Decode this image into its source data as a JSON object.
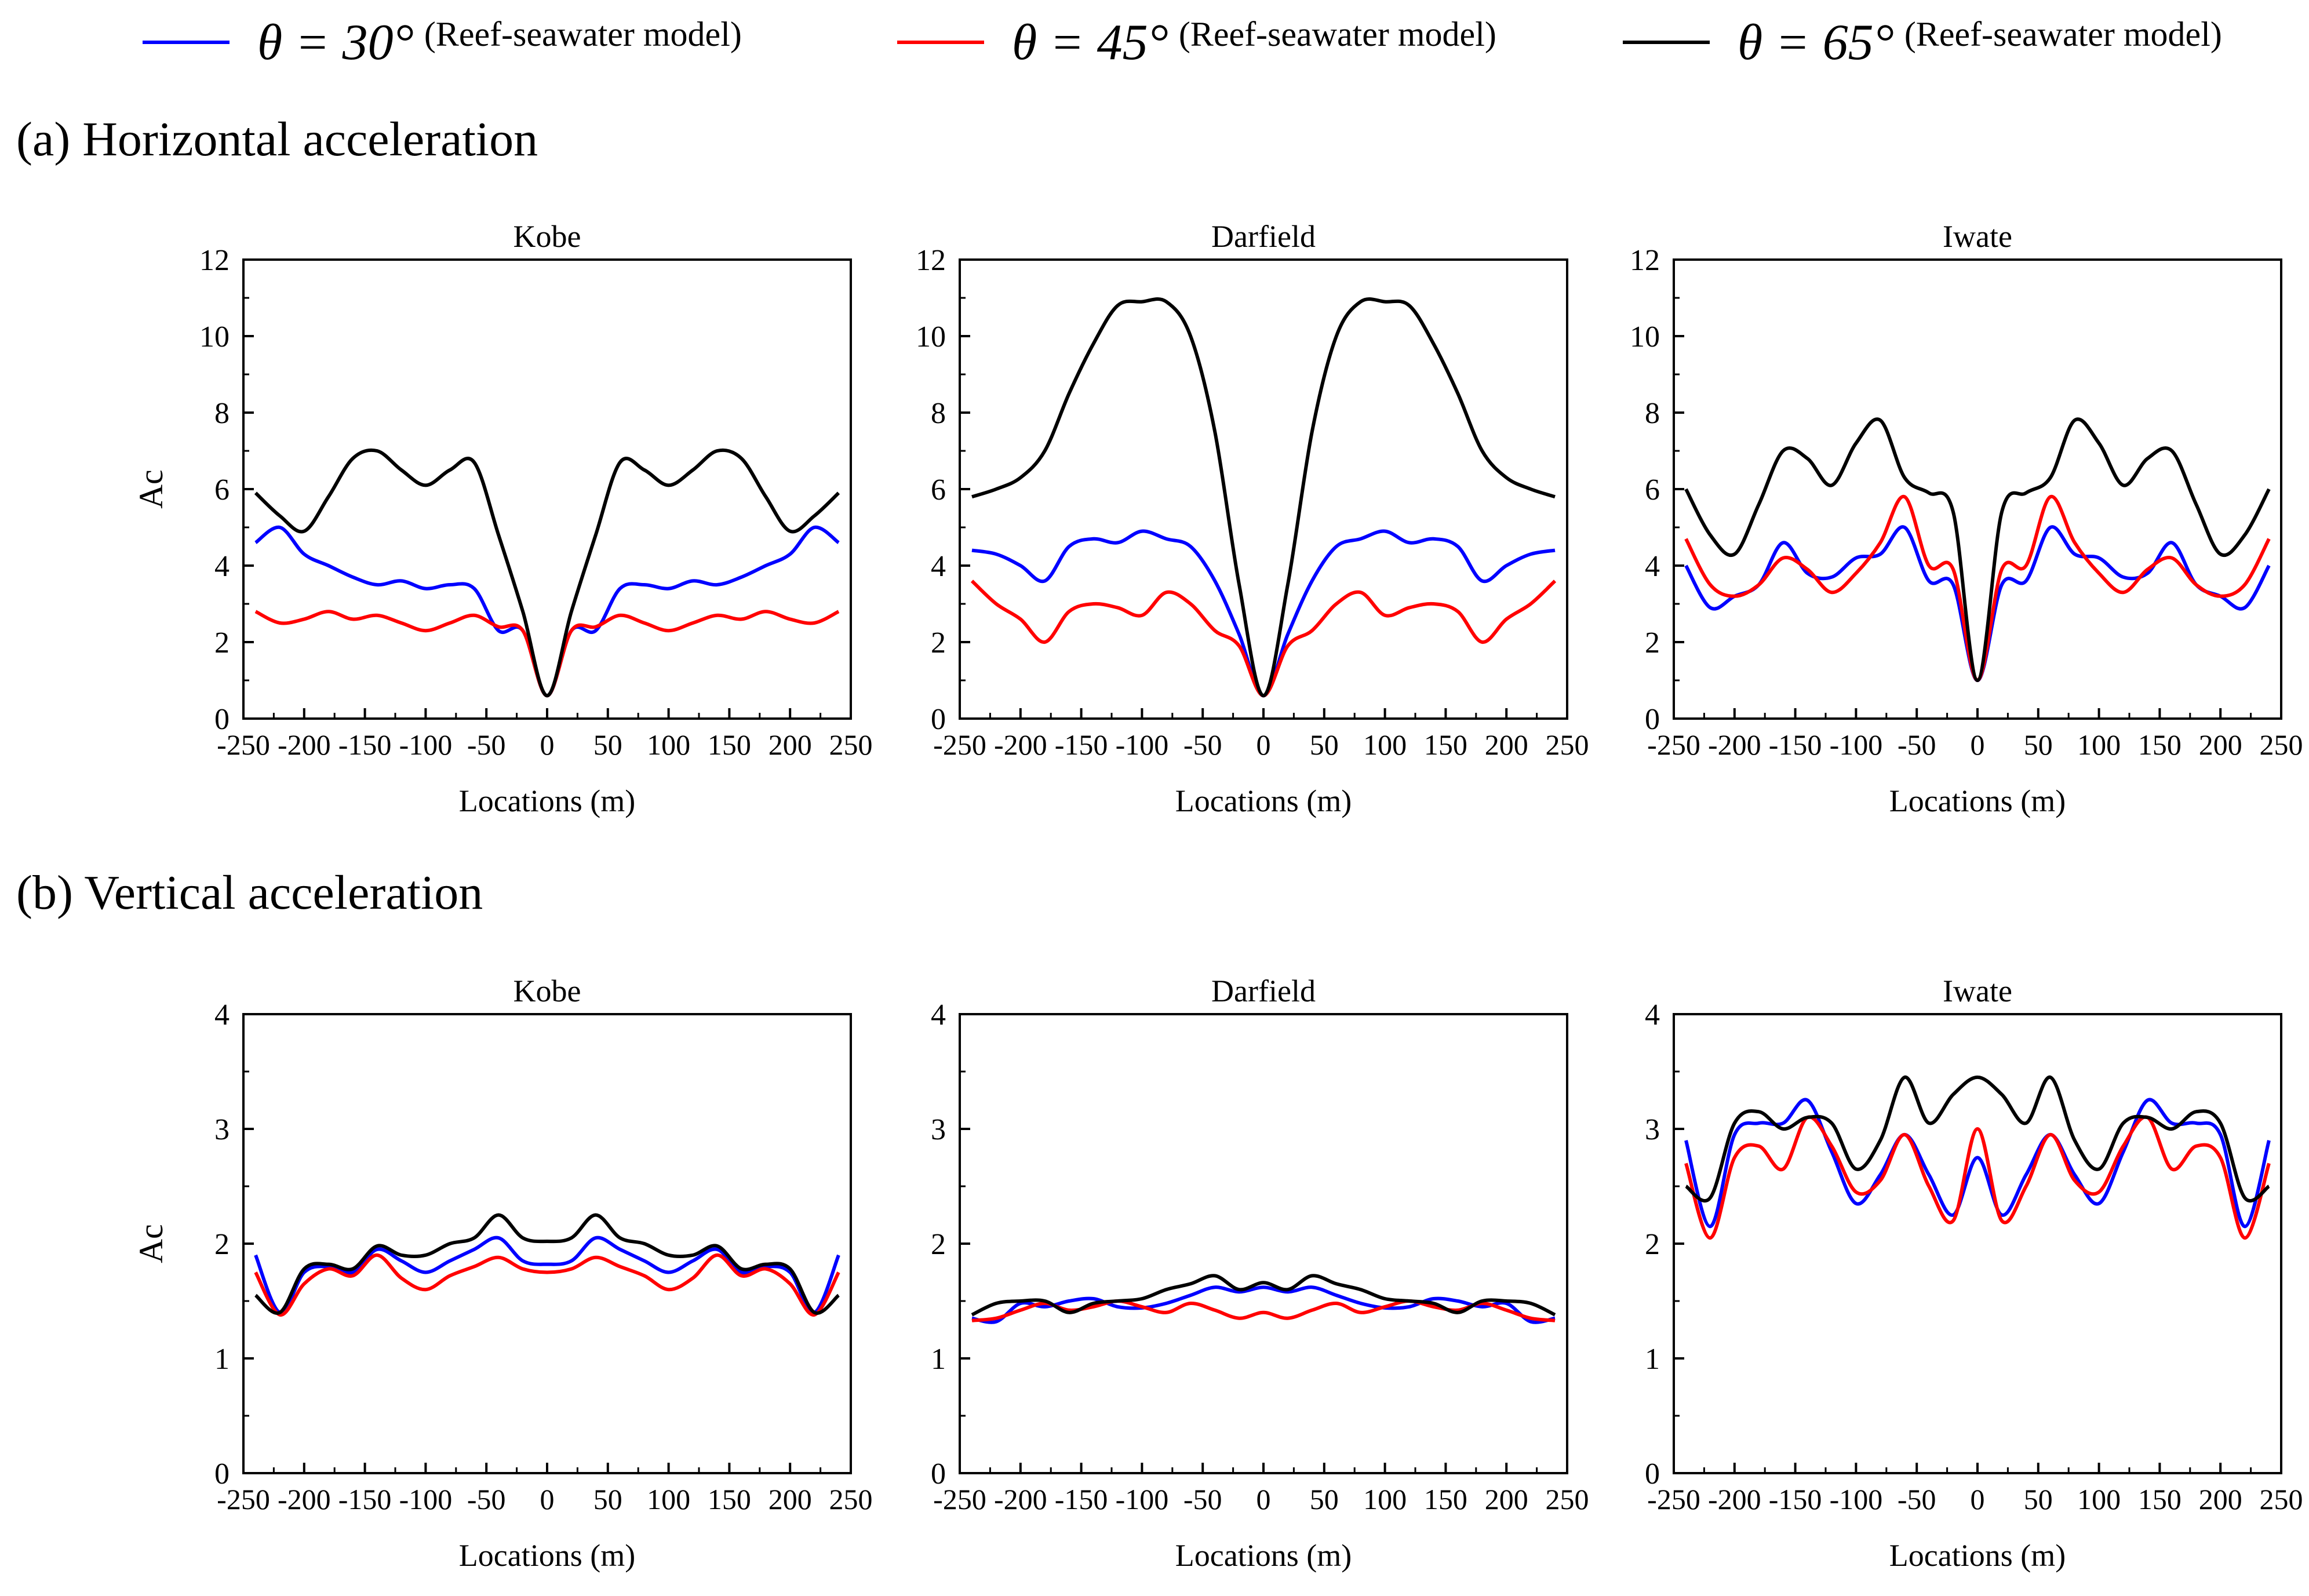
{
  "legend": [
    {
      "symbol": "θ = 30°",
      "note": "(Reef-seawater model)",
      "color": "#0000ff"
    },
    {
      "symbol": "θ = 45°",
      "note": "(Reef-seawater model)",
      "color": "#ff0000"
    },
    {
      "symbol": "θ = 65°",
      "note": "(Reef-seawater model)",
      "color": "#000000"
    }
  ],
  "sections": {
    "a": "(a) Horizontal acceleration",
    "b": "(b) Vertical acceleration"
  },
  "chart_data": [
    {
      "type": "line",
      "title": "Kobe",
      "xlabel": "Locations (m)",
      "ylabel": "Ac",
      "xlim": [
        -250,
        250
      ],
      "ylim": [
        0,
        12
      ],
      "xticks": [
        -250,
        -200,
        -150,
        -100,
        -50,
        0,
        50,
        100,
        150,
        200,
        250
      ],
      "yticks": [
        0,
        2,
        4,
        6,
        8,
        10,
        12
      ],
      "x": [
        -240,
        -220,
        -200,
        -180,
        -160,
        -140,
        -120,
        -100,
        -80,
        -60,
        -40,
        -20,
        0,
        20,
        40,
        60,
        80,
        100,
        120,
        140,
        160,
        180,
        200,
        220,
        240
      ],
      "series": [
        {
          "name": "θ = 30°",
          "color": "#0000ff",
          "values": [
            4.6,
            5.0,
            4.3,
            4.0,
            3.7,
            3.5,
            3.6,
            3.4,
            3.5,
            3.4,
            2.3,
            2.3,
            0.6,
            2.3,
            2.3,
            3.4,
            3.5,
            3.4,
            3.6,
            3.5,
            3.7,
            4.0,
            4.3,
            5.0,
            4.6
          ]
        },
        {
          "name": "θ = 45°",
          "color": "#ff0000",
          "values": [
            2.8,
            2.5,
            2.6,
            2.8,
            2.6,
            2.7,
            2.5,
            2.3,
            2.5,
            2.7,
            2.4,
            2.3,
            0.6,
            2.3,
            2.4,
            2.7,
            2.5,
            2.3,
            2.5,
            2.7,
            2.6,
            2.8,
            2.6,
            2.5,
            2.8
          ]
        },
        {
          "name": "θ = 65°",
          "color": "#000000",
          "values": [
            5.9,
            5.3,
            4.9,
            5.8,
            6.8,
            7.0,
            6.5,
            6.1,
            6.5,
            6.7,
            4.8,
            2.8,
            0.6,
            2.8,
            4.8,
            6.7,
            6.5,
            6.1,
            6.5,
            7.0,
            6.8,
            5.8,
            4.9,
            5.3,
            5.9
          ]
        }
      ]
    },
    {
      "type": "line",
      "title": "Darfield",
      "xlabel": "Locations (m)",
      "ylabel": "",
      "xlim": [
        -250,
        250
      ],
      "ylim": [
        0,
        12
      ],
      "xticks": [
        -250,
        -200,
        -150,
        -100,
        -50,
        0,
        50,
        100,
        150,
        200,
        250
      ],
      "yticks": [
        0,
        2,
        4,
        6,
        8,
        10,
        12
      ],
      "x": [
        -240,
        -220,
        -200,
        -180,
        -160,
        -140,
        -120,
        -100,
        -80,
        -60,
        -40,
        -20,
        0,
        20,
        40,
        60,
        80,
        100,
        120,
        140,
        160,
        180,
        200,
        220,
        240
      ],
      "series": [
        {
          "name": "θ = 30°",
          "color": "#0000ff",
          "values": [
            4.4,
            4.3,
            4.0,
            3.6,
            4.5,
            4.7,
            4.6,
            4.9,
            4.7,
            4.5,
            3.6,
            2.2,
            0.6,
            2.2,
            3.6,
            4.5,
            4.7,
            4.9,
            4.6,
            4.7,
            4.5,
            3.6,
            4.0,
            4.3,
            4.4
          ]
        },
        {
          "name": "θ = 45°",
          "color": "#ff0000",
          "values": [
            3.6,
            3.0,
            2.6,
            2.0,
            2.8,
            3.0,
            2.9,
            2.7,
            3.3,
            3.0,
            2.3,
            1.9,
            0.6,
            1.9,
            2.3,
            3.0,
            3.3,
            2.7,
            2.9,
            3.0,
            2.8,
            2.0,
            2.6,
            3.0,
            3.6
          ]
        },
        {
          "name": "θ = 65°",
          "color": "#000000",
          "values": [
            5.8,
            6.0,
            6.3,
            7.0,
            8.5,
            9.8,
            10.8,
            10.9,
            10.9,
            10.0,
            7.5,
            3.5,
            0.6,
            3.5,
            7.5,
            10.0,
            10.9,
            10.9,
            10.8,
            9.8,
            8.5,
            7.0,
            6.3,
            6.0,
            5.8
          ]
        }
      ]
    },
    {
      "type": "line",
      "title": "Iwate",
      "xlabel": "Locations (m)",
      "ylabel": "",
      "xlim": [
        -250,
        250
      ],
      "ylim": [
        0,
        12
      ],
      "xticks": [
        -250,
        -200,
        -150,
        -100,
        -50,
        0,
        50,
        100,
        150,
        200,
        250
      ],
      "yticks": [
        0,
        2,
        4,
        6,
        8,
        10,
        12
      ],
      "x": [
        -240,
        -220,
        -200,
        -180,
        -160,
        -140,
        -120,
        -100,
        -80,
        -60,
        -40,
        -20,
        0,
        20,
        40,
        60,
        80,
        100,
        120,
        140,
        160,
        180,
        200,
        220,
        240
      ],
      "series": [
        {
          "name": "θ = 30°",
          "color": "#0000ff",
          "values": [
            4.0,
            2.9,
            3.2,
            3.5,
            4.6,
            3.8,
            3.7,
            4.2,
            4.3,
            5.0,
            3.6,
            3.5,
            1.0,
            3.5,
            3.6,
            5.0,
            4.3,
            4.2,
            3.7,
            3.8,
            4.6,
            3.5,
            3.2,
            2.9,
            4.0
          ]
        },
        {
          "name": "θ = 45°",
          "color": "#ff0000",
          "values": [
            4.7,
            3.5,
            3.2,
            3.5,
            4.2,
            3.9,
            3.3,
            3.8,
            4.6,
            5.8,
            4.0,
            3.9,
            1.0,
            3.9,
            4.0,
            5.8,
            4.6,
            3.8,
            3.3,
            3.9,
            4.2,
            3.5,
            3.2,
            3.5,
            4.7
          ]
        },
        {
          "name": "θ = 65°",
          "color": "#000000",
          "values": [
            6.0,
            4.8,
            4.3,
            5.6,
            7.0,
            6.8,
            6.1,
            7.2,
            7.8,
            6.3,
            5.9,
            5.4,
            1.0,
            5.4,
            5.9,
            6.3,
            7.8,
            7.2,
            6.1,
            6.8,
            7.0,
            5.6,
            4.3,
            4.8,
            6.0
          ]
        }
      ]
    },
    {
      "type": "line",
      "title": "Kobe",
      "xlabel": "Locations (m)",
      "ylabel": "Ac",
      "xlim": [
        -250,
        250
      ],
      "ylim": [
        0,
        4
      ],
      "xticks": [
        -250,
        -200,
        -150,
        -100,
        -50,
        0,
        50,
        100,
        150,
        200,
        250
      ],
      "yticks": [
        0,
        1,
        2,
        3,
        4
      ],
      "x": [
        -240,
        -220,
        -200,
        -180,
        -160,
        -140,
        -120,
        -100,
        -80,
        -60,
        -40,
        -20,
        0,
        20,
        40,
        60,
        80,
        100,
        120,
        140,
        160,
        180,
        200,
        220,
        240
      ],
      "series": [
        {
          "name": "θ = 30°",
          "color": "#0000ff",
          "values": [
            1.9,
            1.4,
            1.75,
            1.8,
            1.75,
            1.95,
            1.85,
            1.75,
            1.85,
            1.95,
            2.05,
            1.85,
            1.82,
            1.85,
            2.05,
            1.95,
            1.85,
            1.75,
            1.85,
            1.95,
            1.75,
            1.8,
            1.75,
            1.4,
            1.9
          ]
        },
        {
          "name": "θ = 45°",
          "color": "#ff0000",
          "values": [
            1.75,
            1.38,
            1.65,
            1.78,
            1.72,
            1.9,
            1.7,
            1.6,
            1.72,
            1.8,
            1.88,
            1.78,
            1.75,
            1.78,
            1.88,
            1.8,
            1.72,
            1.6,
            1.7,
            1.9,
            1.72,
            1.78,
            1.65,
            1.38,
            1.75
          ]
        },
        {
          "name": "θ = 65°",
          "color": "#000000",
          "values": [
            1.55,
            1.4,
            1.78,
            1.82,
            1.78,
            1.98,
            1.9,
            1.9,
            2.0,
            2.05,
            2.25,
            2.05,
            2.02,
            2.05,
            2.25,
            2.05,
            2.0,
            1.9,
            1.9,
            1.98,
            1.78,
            1.82,
            1.78,
            1.4,
            1.55
          ]
        }
      ]
    },
    {
      "type": "line",
      "title": "Darfield",
      "xlabel": "Locations (m)",
      "ylabel": "",
      "xlim": [
        -250,
        250
      ],
      "ylim": [
        0,
        4
      ],
      "xticks": [
        -250,
        -200,
        -150,
        -100,
        -50,
        0,
        50,
        100,
        150,
        200,
        250
      ],
      "yticks": [
        0,
        1,
        2,
        3,
        4
      ],
      "x": [
        -240,
        -220,
        -200,
        -180,
        -160,
        -140,
        -120,
        -100,
        -80,
        -60,
        -40,
        -20,
        0,
        20,
        40,
        60,
        80,
        100,
        120,
        140,
        160,
        180,
        200,
        220,
        240
      ],
      "series": [
        {
          "name": "θ = 30°",
          "color": "#0000ff",
          "values": [
            1.35,
            1.32,
            1.48,
            1.45,
            1.5,
            1.52,
            1.45,
            1.44,
            1.48,
            1.55,
            1.62,
            1.58,
            1.62,
            1.58,
            1.62,
            1.55,
            1.48,
            1.44,
            1.45,
            1.52,
            1.5,
            1.45,
            1.48,
            1.32,
            1.35
          ]
        },
        {
          "name": "θ = 45°",
          "color": "#ff0000",
          "values": [
            1.33,
            1.35,
            1.42,
            1.48,
            1.42,
            1.45,
            1.5,
            1.45,
            1.4,
            1.48,
            1.42,
            1.35,
            1.4,
            1.35,
            1.42,
            1.48,
            1.4,
            1.45,
            1.5,
            1.45,
            1.42,
            1.48,
            1.42,
            1.35,
            1.33
          ]
        },
        {
          "name": "θ = 65°",
          "color": "#000000",
          "values": [
            1.38,
            1.48,
            1.5,
            1.5,
            1.4,
            1.48,
            1.5,
            1.52,
            1.6,
            1.65,
            1.72,
            1.6,
            1.66,
            1.6,
            1.72,
            1.65,
            1.6,
            1.52,
            1.5,
            1.48,
            1.4,
            1.5,
            1.5,
            1.48,
            1.38
          ]
        }
      ]
    },
    {
      "type": "line",
      "title": "Iwate",
      "xlabel": "Locations (m)",
      "ylabel": "",
      "xlim": [
        -250,
        250
      ],
      "ylim": [
        0,
        4
      ],
      "xticks": [
        -250,
        -200,
        -150,
        -100,
        -50,
        0,
        50,
        100,
        150,
        200,
        250
      ],
      "yticks": [
        0,
        1,
        2,
        3,
        4
      ],
      "x": [
        -240,
        -220,
        -200,
        -180,
        -160,
        -140,
        -120,
        -100,
        -80,
        -60,
        -40,
        -20,
        0,
        20,
        40,
        60,
        80,
        100,
        120,
        140,
        160,
        180,
        200,
        220,
        240
      ],
      "series": [
        {
          "name": "θ = 30°",
          "color": "#0000ff",
          "values": [
            2.9,
            2.15,
            2.95,
            3.05,
            3.05,
            3.25,
            2.8,
            2.35,
            2.6,
            2.95,
            2.6,
            2.25,
            2.75,
            2.25,
            2.6,
            2.95,
            2.6,
            2.35,
            2.8,
            3.25,
            3.05,
            3.05,
            2.95,
            2.15,
            2.9
          ]
        },
        {
          "name": "θ = 45°",
          "color": "#ff0000",
          "values": [
            2.7,
            2.05,
            2.75,
            2.85,
            2.65,
            3.1,
            2.85,
            2.45,
            2.55,
            2.95,
            2.5,
            2.2,
            3.0,
            2.2,
            2.5,
            2.95,
            2.55,
            2.45,
            2.85,
            3.1,
            2.65,
            2.85,
            2.75,
            2.05,
            2.7
          ]
        },
        {
          "name": "θ = 65°",
          "color": "#000000",
          "values": [
            2.5,
            2.4,
            3.05,
            3.15,
            3.0,
            3.1,
            3.05,
            2.65,
            2.9,
            3.45,
            3.05,
            3.3,
            3.45,
            3.3,
            3.05,
            3.45,
            2.9,
            2.65,
            3.05,
            3.1,
            3.0,
            3.15,
            3.05,
            2.4,
            2.5
          ]
        }
      ]
    }
  ]
}
